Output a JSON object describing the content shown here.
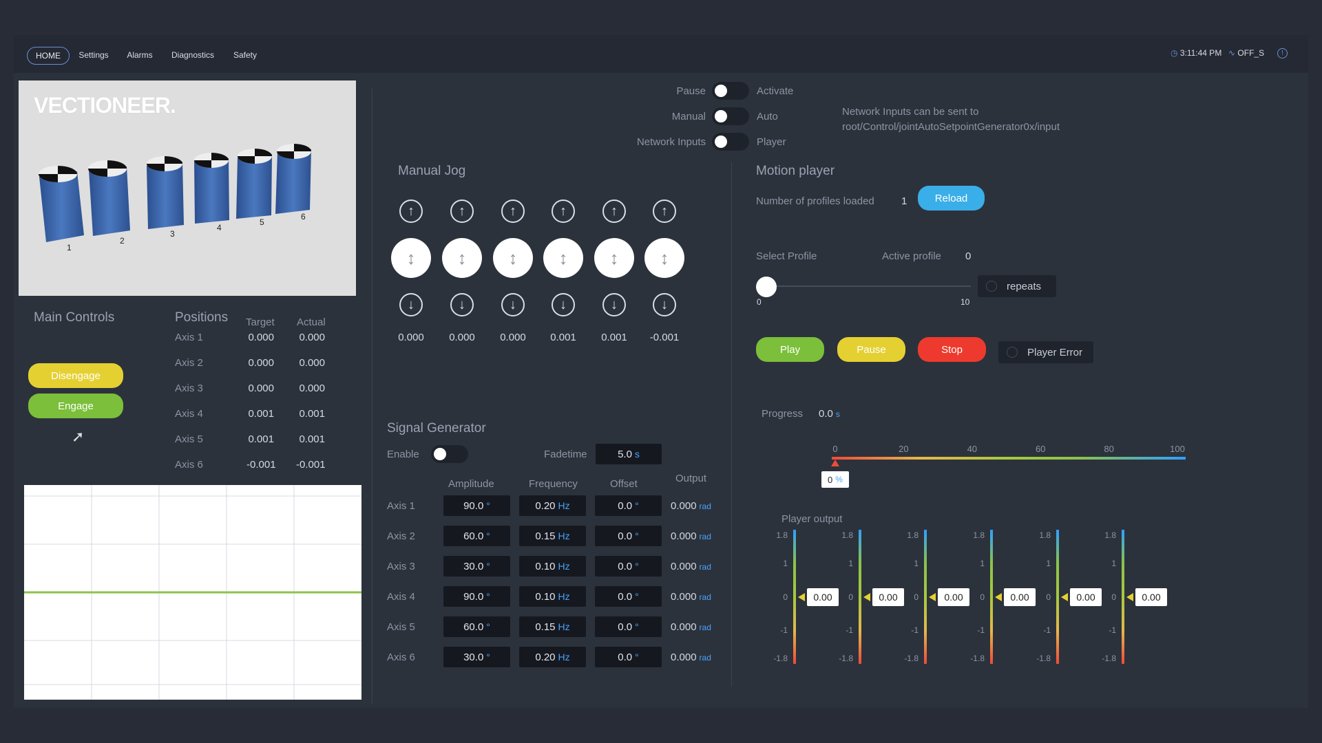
{
  "nav": {
    "tabs": [
      {
        "label": "HOME",
        "active": true
      },
      {
        "label": "Settings",
        "active": false
      },
      {
        "label": "Alarms",
        "active": false
      },
      {
        "label": "Diagnostics",
        "active": false
      },
      {
        "label": "Safety",
        "active": false
      }
    ],
    "time": "3:11:44 PM",
    "status": "OFF_S"
  },
  "robot_view": {
    "logo": "VECTIONEER.",
    "actuator_labels": [
      "1",
      "2",
      "3",
      "4",
      "5",
      "6"
    ]
  },
  "main_controls": {
    "title": "Main Controls",
    "disengage_label": "Disengage",
    "engage_label": "Engage",
    "button_colors": {
      "disengage": "#e5d032",
      "engage": "#7bbf3a"
    }
  },
  "positions": {
    "title": "Positions",
    "target_header": "Target",
    "actual_header": "Actual",
    "rows": [
      {
        "axis": "Axis 1",
        "target": "0.000",
        "actual": "0.000"
      },
      {
        "axis": "Axis 2",
        "target": "0.000",
        "actual": "0.000"
      },
      {
        "axis": "Axis 3",
        "target": "0.000",
        "actual": "0.000"
      },
      {
        "axis": "Axis 4",
        "target": "0.001",
        "actual": "0.001"
      },
      {
        "axis": "Axis 5",
        "target": "0.001",
        "actual": "0.001"
      },
      {
        "axis": "Axis 6",
        "target": "-0.001",
        "actual": "-0.001"
      }
    ]
  },
  "modes": {
    "rows": [
      {
        "left": "Pause",
        "right": "Activate"
      },
      {
        "left": "Manual",
        "right": "Auto"
      },
      {
        "left": "Network Inputs",
        "right": "Player"
      }
    ],
    "network_note_line1": "Network Inputs can be sent to",
    "network_note_line2": "root/Control/jointAutoSetpointGenerator0x/input"
  },
  "manual_jog": {
    "title": "Manual Jog",
    "values": [
      "0.000",
      "0.000",
      "0.000",
      "0.001",
      "0.001",
      "-0.001"
    ]
  },
  "signal_generator": {
    "title": "Signal Generator",
    "enable_label": "Enable",
    "fadetime_label": "Fadetime",
    "fadetime_value": "5.0",
    "fadetime_unit": "s",
    "headers": {
      "amplitude": "Amplitude",
      "frequency": "Frequency",
      "offset": "Offset",
      "output": "Output"
    },
    "rows": [
      {
        "axis": "Axis 1",
        "amplitude": "90.0",
        "frequency": "0.20",
        "offset": "0.0",
        "output": "0.000"
      },
      {
        "axis": "Axis 2",
        "amplitude": "60.0",
        "frequency": "0.15",
        "offset": "0.0",
        "output": "0.000"
      },
      {
        "axis": "Axis 3",
        "amplitude": "30.0",
        "frequency": "0.10",
        "offset": "0.0",
        "output": "0.000"
      },
      {
        "axis": "Axis 4",
        "amplitude": "90.0",
        "frequency": "0.10",
        "offset": "0.0",
        "output": "0.000"
      },
      {
        "axis": "Axis 5",
        "amplitude": "60.0",
        "frequency": "0.15",
        "offset": "0.0",
        "output": "0.000"
      },
      {
        "axis": "Axis 6",
        "amplitude": "30.0",
        "frequency": "0.20",
        "offset": "0.0",
        "output": "0.000"
      }
    ],
    "units": {
      "deg": "°",
      "hz": "Hz",
      "rad": "rad"
    }
  },
  "motion_player": {
    "title": "Motion player",
    "profiles_label": "Number of profiles loaded",
    "profiles_value": "1",
    "reload_label": "Reload",
    "select_profile_label": "Select Profile",
    "active_profile_label": "Active profile",
    "active_profile_value": "0",
    "slider_min": "0",
    "slider_max": "10",
    "slider_value": 0,
    "repeats_label": "repeats",
    "play_label": "Play",
    "pause_label": "Pause",
    "stop_label": "Stop",
    "player_error_label": "Player Error",
    "progress_label": "Progress",
    "progress_value": "0.0",
    "progress_unit": "s",
    "progress_ticks": [
      "0",
      "20",
      "40",
      "60",
      "80",
      "100"
    ],
    "progress_percent_value": "0",
    "progress_percent_unit": "%",
    "player_output_label": "Player output",
    "gauge_ticks": [
      "1.8",
      "1",
      "0",
      "-1",
      "-1.8"
    ],
    "gauge_values": [
      "0.00",
      "0.00",
      "0.00",
      "0.00",
      "0.00",
      "0.00"
    ]
  },
  "colors": {
    "play": "#7bbf3a",
    "pause": "#e5d032",
    "stop": "#ee3a2e",
    "reload": "#3aaee8"
  }
}
